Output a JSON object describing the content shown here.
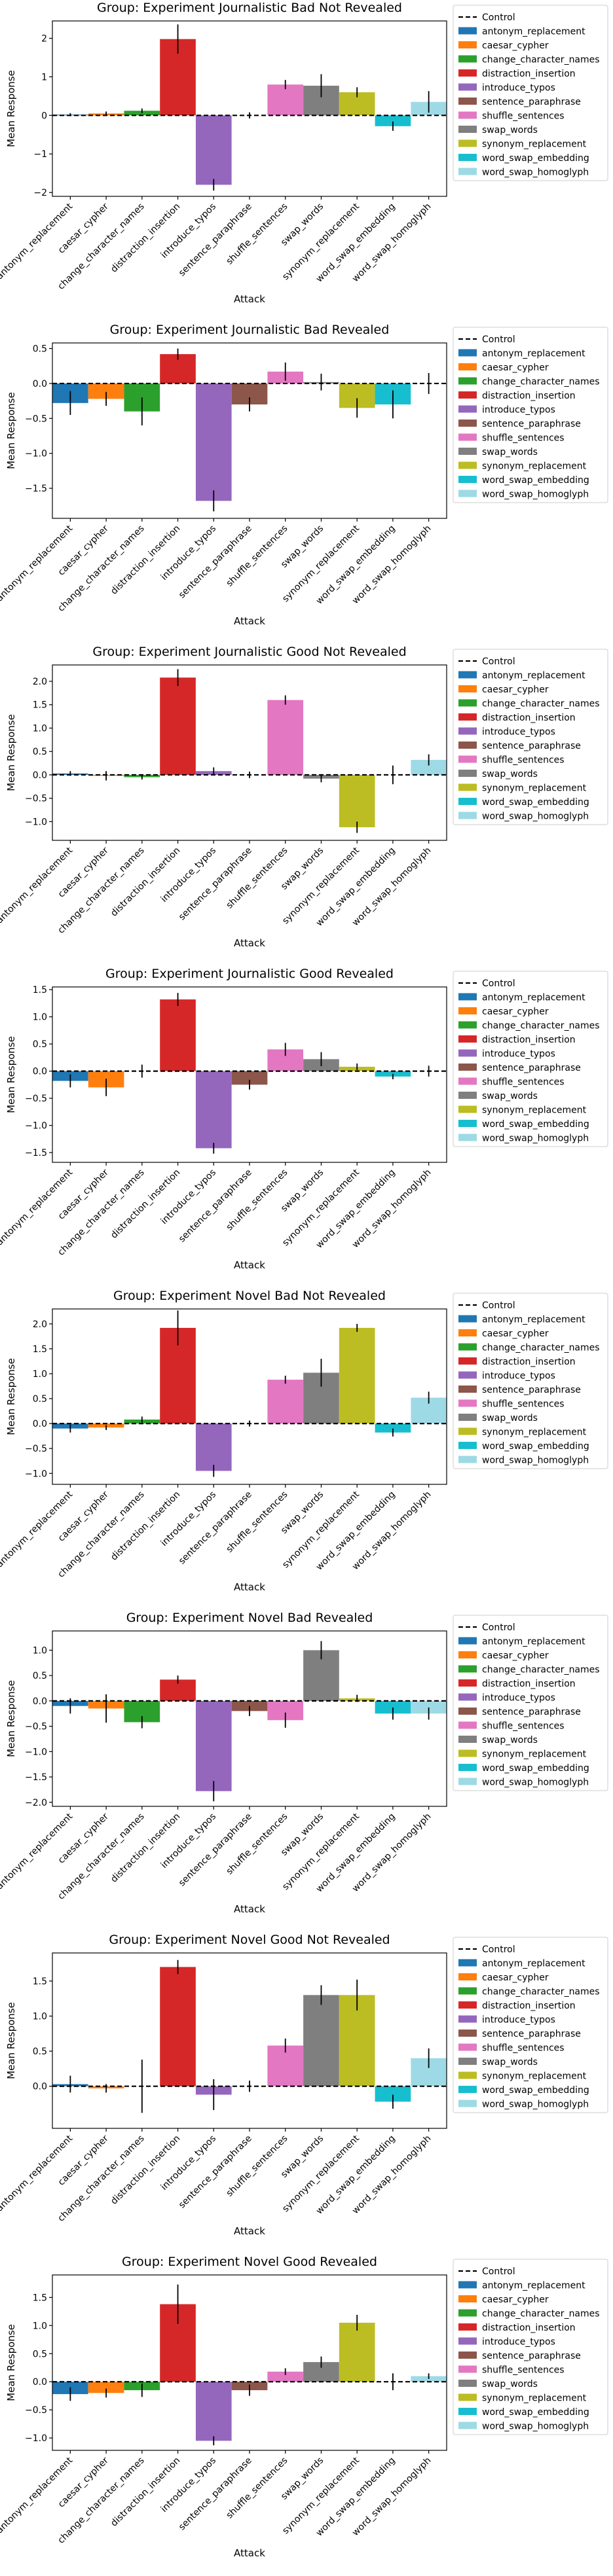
{
  "chart_data": [
    {
      "type": "bar",
      "title": "Group: Experiment Journalistic Bad Not Revealed",
      "xlabel": "Attack",
      "ylabel": "Mean Response",
      "ylim": [
        -2.1,
        2.45
      ],
      "yticks": [
        -2,
        -1,
        0,
        1,
        2
      ],
      "categories": [
        "antonym_replacement",
        "caesar_cypher",
        "change_character_names",
        "distraction_insertion",
        "introduce_typos",
        "sentence_paraphrase",
        "shuffle_sentences",
        "swap_words",
        "synonym_replacement",
        "word_swap_embedding",
        "word_swap_homoglyph"
      ],
      "values": [
        0.02,
        0.05,
        0.12,
        1.98,
        -1.8,
        0.0,
        0.8,
        0.77,
        0.6,
        -0.28,
        0.35
      ],
      "errors": [
        0.04,
        0.05,
        0.06,
        0.38,
        0.15,
        0.08,
        0.12,
        0.3,
        0.13,
        0.12,
        0.28
      ],
      "control_value": 0.0,
      "grid": false,
      "legend_position": "outside-right"
    },
    {
      "type": "bar",
      "title": "Group: Experiment Journalistic Bad Revealed",
      "xlabel": "Attack",
      "ylabel": "Mean Response",
      "ylim": [
        -1.93,
        0.58
      ],
      "yticks": [
        -1.5,
        -1.0,
        -0.5,
        0.0,
        0.5
      ],
      "categories": [
        "antonym_replacement",
        "caesar_cypher",
        "change_character_names",
        "distraction_insertion",
        "introduce_typos",
        "sentence_paraphrase",
        "shuffle_sentences",
        "swap_words",
        "synonym_replacement",
        "word_swap_embedding",
        "word_swap_homoglyph"
      ],
      "values": [
        -0.28,
        -0.22,
        -0.4,
        0.42,
        -1.68,
        -0.3,
        0.17,
        0.02,
        -0.35,
        -0.3,
        0.0
      ],
      "errors": [
        0.17,
        0.1,
        0.2,
        0.08,
        0.15,
        0.1,
        0.13,
        0.12,
        0.14,
        0.2,
        0.15
      ],
      "control_value": 0.0,
      "grid": false,
      "legend_position": "outside-right"
    },
    {
      "type": "bar",
      "title": "Group: Experiment Journalistic Good Not Revealed",
      "xlabel": "Attack",
      "ylabel": "Mean Response",
      "ylim": [
        -1.4,
        2.35
      ],
      "yticks": [
        -1.0,
        -0.5,
        0.0,
        0.5,
        1.0,
        1.5,
        2.0
      ],
      "categories": [
        "antonym_replacement",
        "caesar_cypher",
        "change_character_names",
        "distraction_insertion",
        "introduce_typos",
        "sentence_paraphrase",
        "shuffle_sentences",
        "swap_words",
        "synonym_replacement",
        "word_swap_embedding",
        "word_swap_homoglyph"
      ],
      "values": [
        0.03,
        -0.02,
        -0.05,
        2.08,
        0.08,
        0.0,
        1.6,
        -0.08,
        -1.12,
        0.0,
        0.32
      ],
      "errors": [
        0.05,
        0.1,
        0.05,
        0.18,
        0.08,
        0.07,
        0.1,
        0.08,
        0.12,
        0.2,
        0.12
      ],
      "control_value": 0.0,
      "grid": false,
      "legend_position": "outside-right"
    },
    {
      "type": "bar",
      "title": "Group: Experiment Journalistic Good Revealed",
      "xlabel": "Attack",
      "ylabel": "Mean Response",
      "ylim": [
        -1.68,
        1.55
      ],
      "yticks": [
        -1.5,
        -1.0,
        -0.5,
        0.0,
        0.5,
        1.0,
        1.5
      ],
      "categories": [
        "antonym_replacement",
        "caesar_cypher",
        "change_character_names",
        "distraction_insertion",
        "introduce_typos",
        "sentence_paraphrase",
        "shuffle_sentences",
        "swap_words",
        "synonym_replacement",
        "word_swap_embedding",
        "word_swap_homoglyph"
      ],
      "values": [
        -0.18,
        -0.3,
        0.0,
        1.32,
        -1.42,
        -0.25,
        0.4,
        0.22,
        0.08,
        -0.1,
        0.0
      ],
      "errors": [
        0.12,
        0.16,
        0.12,
        0.12,
        0.1,
        0.09,
        0.12,
        0.13,
        0.06,
        0.05,
        0.1
      ],
      "control_value": 0.0,
      "grid": false,
      "legend_position": "outside-right"
    },
    {
      "type": "bar",
      "title": "Group: Experiment Novel Bad Not Revealed",
      "xlabel": "Attack",
      "ylabel": "Mean Response",
      "ylim": [
        -1.22,
        2.3
      ],
      "yticks": [
        -1.0,
        -0.5,
        0.0,
        0.5,
        1.0,
        1.5,
        2.0
      ],
      "categories": [
        "antonym_replacement",
        "caesar_cypher",
        "change_character_names",
        "distraction_insertion",
        "introduce_typos",
        "sentence_paraphrase",
        "shuffle_sentences",
        "swap_words",
        "synonym_replacement",
        "word_swap_embedding",
        "word_swap_homoglyph"
      ],
      "values": [
        -0.1,
        -0.08,
        0.08,
        1.92,
        -0.95,
        0.0,
        0.88,
        1.02,
        1.92,
        -0.18,
        0.52
      ],
      "errors": [
        0.08,
        0.05,
        0.06,
        0.35,
        0.12,
        0.06,
        0.08,
        0.28,
        0.08,
        0.08,
        0.12
      ],
      "control_value": 0.0,
      "grid": false,
      "legend_position": "outside-right"
    },
    {
      "type": "bar",
      "title": "Group: Experiment Novel Bad Revealed",
      "xlabel": "Attack",
      "ylabel": "Mean Response",
      "ylim": [
        -2.08,
        1.38
      ],
      "yticks": [
        -2.0,
        -1.5,
        -1.0,
        -0.5,
        0.0,
        0.5,
        1.0
      ],
      "categories": [
        "antonym_replacement",
        "caesar_cypher",
        "change_character_names",
        "distraction_insertion",
        "introduce_typos",
        "sentence_paraphrase",
        "shuffle_sentences",
        "swap_words",
        "synonym_replacement",
        "word_swap_embedding",
        "word_swap_homoglyph"
      ],
      "values": [
        -0.1,
        -0.15,
        -0.42,
        0.42,
        -1.78,
        -0.2,
        -0.38,
        1.0,
        0.05,
        -0.25,
        -0.25
      ],
      "errors": [
        0.15,
        0.28,
        0.12,
        0.08,
        0.2,
        0.1,
        0.15,
        0.18,
        0.07,
        0.12,
        0.12
      ],
      "control_value": 0.0,
      "grid": false,
      "legend_position": "outside-right"
    },
    {
      "type": "bar",
      "title": "Group: Experiment Novel Good Not Revealed",
      "xlabel": "Attack",
      "ylabel": "Mean Response",
      "ylim": [
        -0.6,
        1.9
      ],
      "yticks": [
        0.0,
        0.5,
        1.0,
        1.5
      ],
      "categories": [
        "antonym_replacement",
        "caesar_cypher",
        "change_character_names",
        "distraction_insertion",
        "introduce_typos",
        "sentence_paraphrase",
        "shuffle_sentences",
        "swap_words",
        "synonym_replacement",
        "word_swap_embedding",
        "word_swap_homoglyph"
      ],
      "values": [
        0.03,
        -0.03,
        0.0,
        1.7,
        -0.12,
        0.0,
        0.58,
        1.3,
        1.3,
        -0.22,
        0.4
      ],
      "errors": [
        0.12,
        0.06,
        0.38,
        0.1,
        0.22,
        0.08,
        0.1,
        0.14,
        0.22,
        0.1,
        0.14
      ],
      "control_value": 0.0,
      "grid": false,
      "legend_position": "outside-right"
    },
    {
      "type": "bar",
      "title": "Group: Experiment Novel Good Revealed",
      "xlabel": "Attack",
      "ylabel": "Mean Response",
      "ylim": [
        -1.22,
        1.9
      ],
      "yticks": [
        -1.0,
        -0.5,
        0.0,
        0.5,
        1.0,
        1.5
      ],
      "categories": [
        "antonym_replacement",
        "caesar_cypher",
        "change_character_names",
        "distraction_insertion",
        "introduce_typos",
        "sentence_paraphrase",
        "shuffle_sentences",
        "swap_words",
        "synonym_replacement",
        "word_swap_embedding",
        "word_swap_homoglyph"
      ],
      "values": [
        -0.22,
        -0.2,
        -0.15,
        1.38,
        -1.05,
        -0.15,
        0.18,
        0.35,
        1.05,
        0.0,
        0.1
      ],
      "errors": [
        0.12,
        0.08,
        0.12,
        0.35,
        0.08,
        0.1,
        0.06,
        0.1,
        0.14,
        0.15,
        0.05
      ],
      "control_value": 0.0,
      "grid": false,
      "legend_position": "outside-right"
    }
  ],
  "legend": {
    "control_label": "Control",
    "entries": [
      "antonym_replacement",
      "caesar_cypher",
      "change_character_names",
      "distraction_insertion",
      "introduce_typos",
      "sentence_paraphrase",
      "shuffle_sentences",
      "swap_words",
      "synonym_replacement",
      "word_swap_embedding",
      "word_swap_homoglyph"
    ]
  },
  "colors": [
    "#1f77b4",
    "#ff7f0e",
    "#2ca02c",
    "#d62728",
    "#9467bd",
    "#8c564b",
    "#e377c2",
    "#7f7f7f",
    "#bcbd22",
    "#17becf",
    "#9edae5"
  ],
  "control_color": "#000000",
  "errorbar_color": "#000000"
}
